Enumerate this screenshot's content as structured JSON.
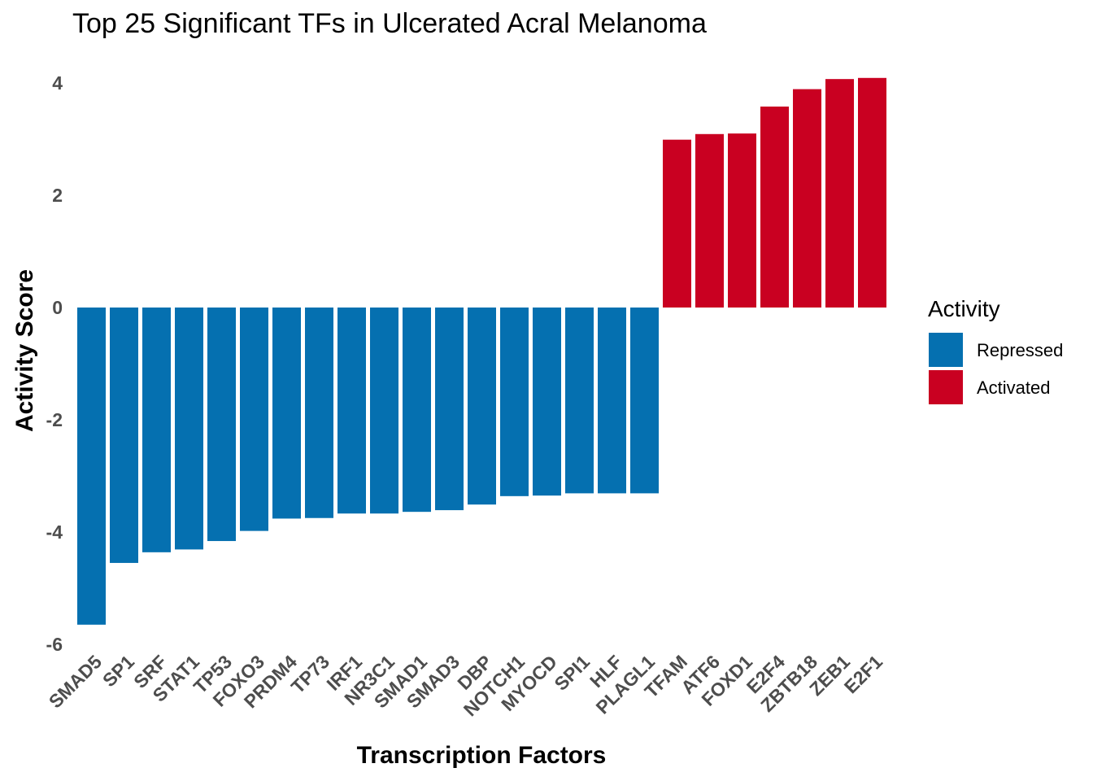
{
  "chart_data": {
    "type": "bar",
    "title": "Top 25 Significant TFs in Ulcerated Acral Melanoma",
    "xlabel": "Transcription Factors",
    "ylabel": "Activity Score",
    "ylim": [
      -6,
      4
    ],
    "yticks": [
      -6,
      -4,
      -2,
      0,
      2,
      4
    ],
    "grid": false,
    "legend": {
      "title": "Activity",
      "position": "right",
      "entries": [
        {
          "label": "Repressed",
          "color": "#0570b0"
        },
        {
          "label": "Activated",
          "color": "#c90021"
        }
      ]
    },
    "categories": [
      "SMAD5",
      "SP1",
      "SRF",
      "STAT1",
      "TP53",
      "FOXO3",
      "PRDM4",
      "TP73",
      "IRF1",
      "NR3C1",
      "SMAD1",
      "SMAD3",
      "DBP",
      "NOTCH1",
      "MYOCD",
      "SPI1",
      "HLF",
      "PLAGL1",
      "TFAM",
      "ATF6",
      "FOXD1",
      "E2F4",
      "ZBTB18",
      "ZEB1",
      "E2F1"
    ],
    "values": [
      -5.65,
      -4.55,
      -4.36,
      -4.31,
      -4.16,
      -3.98,
      -3.76,
      -3.75,
      -3.67,
      -3.67,
      -3.64,
      -3.61,
      -3.51,
      -3.36,
      -3.35,
      -3.31,
      -3.31,
      -3.31,
      2.99,
      3.09,
      3.1,
      3.58,
      3.89,
      4.07,
      4.09
    ],
    "groups": [
      "Repressed",
      "Repressed",
      "Repressed",
      "Repressed",
      "Repressed",
      "Repressed",
      "Repressed",
      "Repressed",
      "Repressed",
      "Repressed",
      "Repressed",
      "Repressed",
      "Repressed",
      "Repressed",
      "Repressed",
      "Repressed",
      "Repressed",
      "Repressed",
      "Activated",
      "Activated",
      "Activated",
      "Activated",
      "Activated",
      "Activated",
      "Activated"
    ]
  }
}
